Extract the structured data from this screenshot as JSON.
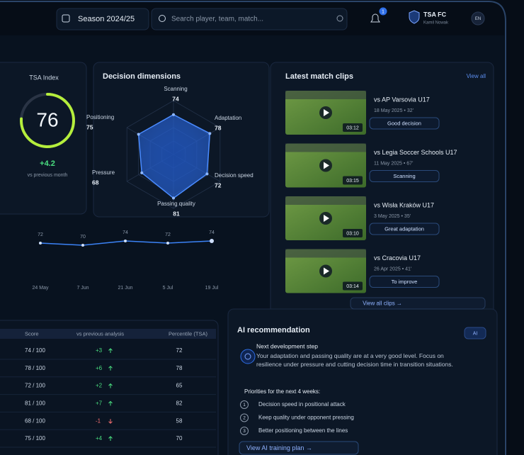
{
  "header": {
    "season": "Season 2024/25",
    "search_placeholder": "Search player, team, match...",
    "notifications": "1",
    "club": "TSA FC",
    "user": "Kamil Nowak",
    "language": "EN"
  },
  "tsa_index": {
    "label": "TSA Index",
    "value": 76,
    "range": [
      0,
      100
    ],
    "change": "+4.2",
    "change_label": "vs previous month"
  },
  "decision_dimensions": {
    "title": "Decision dimensions",
    "rlim": [
      0,
      100
    ],
    "axes": [
      {
        "name": "Scanning",
        "value": 74
      },
      {
        "name": "Adaptation",
        "value": 78
      },
      {
        "name": "Decision speed",
        "value": 72
      },
      {
        "name": "Passing quality",
        "value": 81
      },
      {
        "name": "Pressure",
        "value": 68
      },
      {
        "name": "Positioning",
        "value": 75
      }
    ]
  },
  "trend": {
    "categories": [
      "24 May",
      "7 Jun",
      "21 Jun",
      "5 Jul",
      "19 Jul"
    ],
    "values": [
      72,
      70,
      74,
      72,
      74
    ],
    "ylim": [
      0,
      100
    ]
  },
  "clips": {
    "title": "Latest match clips",
    "view_all": "View all",
    "items": [
      {
        "title": "vs AP Varsovia U17",
        "meta": "18 May 2025 • 32'",
        "duration": "03:12",
        "tag": "Good decision"
      },
      {
        "title": "vs Legia Soccer Schools U17",
        "meta": "11 May 2025 • 67'",
        "duration": "03:15",
        "tag": "Scanning"
      },
      {
        "title": "vs Wisła Kraków U17",
        "meta": "3 May 2025 • 35'",
        "duration": "03:10",
        "tag": "Great adaptation"
      },
      {
        "title": "vs Cracovia U17",
        "meta": "26 Apr 2025 • 41'",
        "duration": "03:14",
        "tag": "To improve"
      }
    ],
    "view_all_clips": "View all clips →"
  },
  "table": {
    "columns": [
      "Score",
      "vs previous analysis",
      "Percentile (TSA)"
    ],
    "rows": [
      [
        "74 / 100",
        "+3",
        72
      ],
      [
        "78 / 100",
        "+6",
        78
      ],
      [
        "72 / 100",
        "+2",
        65
      ],
      [
        "81 / 100",
        "+7",
        82
      ],
      [
        "68 / 100",
        "-1",
        58
      ],
      [
        "75 / 100",
        "+4",
        70
      ]
    ]
  },
  "ai_recommendation": {
    "title": "AI recommendation",
    "badge": "AI",
    "step_title": "Next development step",
    "step_text": "Your adaptation and passing quality are at a very good level. Focus on resilience under pressure and cutting decision time in transition situations.",
    "priorities_title": "Priorities for the next 4 weeks:",
    "priorities": [
      {
        "number": "1",
        "text": "Decision speed in positional attack"
      },
      {
        "number": "2",
        "text": "Keep quality under opponent pressing"
      },
      {
        "number": "3",
        "text": "Better positioning between the lines"
      }
    ],
    "button": "View AI training plan →"
  }
}
